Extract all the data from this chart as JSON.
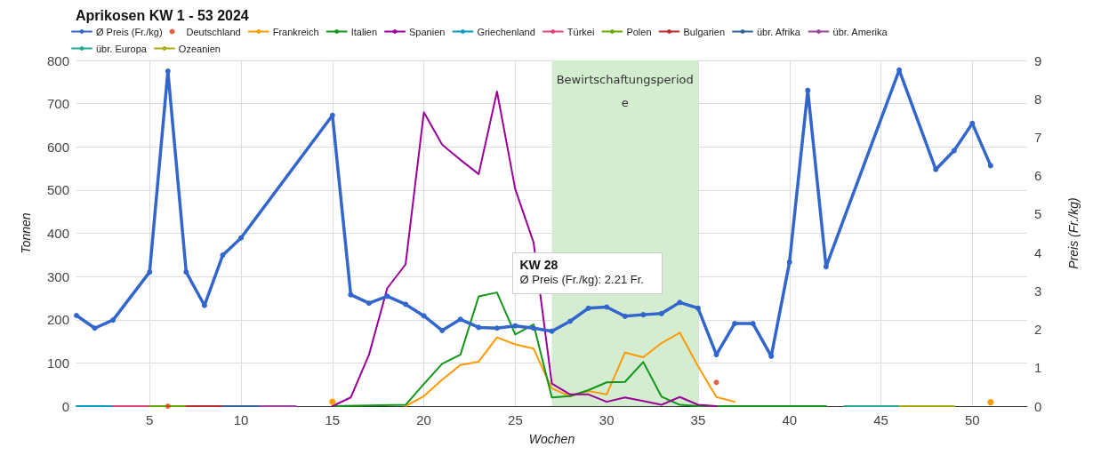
{
  "chart_data": {
    "type": "line",
    "title": "Aprikosen KW 1 - 53 2024",
    "xlabel": "Wochen",
    "ylabel": "Tonnen",
    "y2label": "Preis (Fr./kg)",
    "xlim": [
      1,
      53
    ],
    "xticks": [
      5,
      10,
      15,
      20,
      25,
      30,
      35,
      40,
      45,
      50
    ],
    "ylim": [
      0,
      800
    ],
    "yticks": [
      0,
      100,
      200,
      300,
      400,
      500,
      600,
      700,
      800
    ],
    "y2lim": [
      0,
      9
    ],
    "y2ticks": [
      0,
      1,
      2,
      3,
      4,
      5,
      6,
      7,
      8,
      9
    ],
    "grid": true,
    "legend": "top left",
    "line_style": "solid",
    "bands": [
      {
        "axis": "x",
        "from": 27,
        "to": 35,
        "label": "Bewirtschaftungsperiode",
        "color": "#d4edd0"
      }
    ],
    "annotations": [
      "KW 28\nØ Preis (Fr./kg): 2.21 Fr."
    ],
    "series": [
      {
        "name": "Ø Preis (Fr./kg)",
        "color": "#3366cc",
        "axis": "y2",
        "marker": "circle",
        "x": [
          1,
          2,
          3,
          5,
          6,
          7,
          8,
          9,
          10,
          15,
          16,
          17,
          18,
          19,
          20,
          21,
          22,
          23,
          24,
          25,
          26,
          27,
          28,
          29,
          30,
          31,
          32,
          33,
          34,
          35,
          36,
          37,
          38,
          39,
          40,
          41,
          42,
          46,
          48,
          49,
          50,
          51
        ],
        "values": [
          2.36,
          2.03,
          2.24,
          3.49,
          8.72,
          3.49,
          2.62,
          3.93,
          4.38,
          7.57,
          2.9,
          2.68,
          2.86,
          2.65,
          2.35,
          1.97,
          2.26,
          2.05,
          2.03,
          2.09,
          2.03,
          1.95,
          2.21,
          2.55,
          2.58,
          2.34,
          2.38,
          2.41,
          2.7,
          2.55,
          1.34,
          2.15,
          2.15,
          1.3,
          3.75,
          8.22,
          3.63,
          8.75,
          6.16,
          6.65,
          7.36,
          6.26
        ]
      },
      {
        "name": "Deutschland",
        "type": "scatter",
        "color": "#dc3912",
        "marker": "circle",
        "x": [
          6,
          36
        ],
        "values": [
          0,
          55
        ]
      },
      {
        "name": "Frankreich",
        "color": "#ff9900",
        "marker": "none",
        "x": [
          15,
          16,
          19,
          20,
          21,
          22,
          23,
          24,
          25,
          26,
          27,
          28,
          29,
          30,
          31,
          32,
          33,
          34,
          35,
          36,
          37,
          38,
          50,
          51
        ],
        "values": [
          10,
          null,
          0,
          23,
          61,
          95,
          103,
          159,
          143,
          133,
          41,
          23,
          35,
          27,
          124,
          113,
          146,
          170,
          92,
          21,
          10,
          null,
          null,
          9
        ]
      },
      {
        "name": "Italien",
        "color": "#109618",
        "marker": "none",
        "x": [
          15,
          19,
          20,
          21,
          22,
          23,
          24,
          25,
          26,
          27,
          28,
          29,
          30,
          31,
          32,
          33,
          34,
          35,
          42
        ],
        "values": [
          0,
          3,
          51,
          98,
          119,
          254,
          263,
          166,
          189,
          20,
          23,
          37,
          55,
          56,
          102,
          22,
          3,
          0,
          0
        ]
      },
      {
        "name": "Spanien",
        "color": "#990099",
        "marker": "none",
        "x": [
          15,
          16,
          17,
          18,
          19,
          20,
          21,
          22,
          23,
          24,
          25,
          26,
          27,
          28,
          29,
          30,
          31,
          32,
          33,
          34,
          35,
          36
        ],
        "values": [
          0,
          20,
          119,
          273,
          328,
          680,
          605,
          570,
          537,
          728,
          502,
          379,
          52,
          27,
          27,
          10,
          20,
          12,
          3,
          21,
          3,
          0
        ]
      },
      {
        "name": "Griechenland",
        "color": "#0099c6",
        "marker": "none",
        "x": [
          1,
          3
        ],
        "values": [
          0,
          0
        ]
      },
      {
        "name": "Türkei",
        "color": "#dd4477",
        "marker": "none",
        "x": [
          3,
          5
        ],
        "values": [
          0,
          0
        ]
      },
      {
        "name": "Polen",
        "color": "#66aa00",
        "marker": "none",
        "x": [
          5,
          7
        ],
        "values": [
          0,
          0
        ]
      },
      {
        "name": "Bulgarien",
        "color": "#b82e2e",
        "marker": "none",
        "x": [
          7,
          9
        ],
        "values": [
          0,
          0
        ]
      },
      {
        "name": "übr. Afrika",
        "color": "#316395",
        "marker": "none",
        "x": [
          9,
          11
        ],
        "values": [
          0,
          0
        ]
      },
      {
        "name": "übr. Amerika",
        "color": "#994499",
        "marker": "none",
        "x": [
          11,
          13
        ],
        "values": [
          0,
          0
        ]
      },
      {
        "name": "übr. Europa",
        "color": "#22aa99",
        "marker": "none",
        "x": [
          43,
          46
        ],
        "values": [
          0,
          0
        ]
      },
      {
        "name": "Ozeanien",
        "color": "#aaaa11",
        "marker": "none",
        "x": [
          46,
          49
        ],
        "values": [
          0,
          0
        ]
      }
    ]
  }
}
